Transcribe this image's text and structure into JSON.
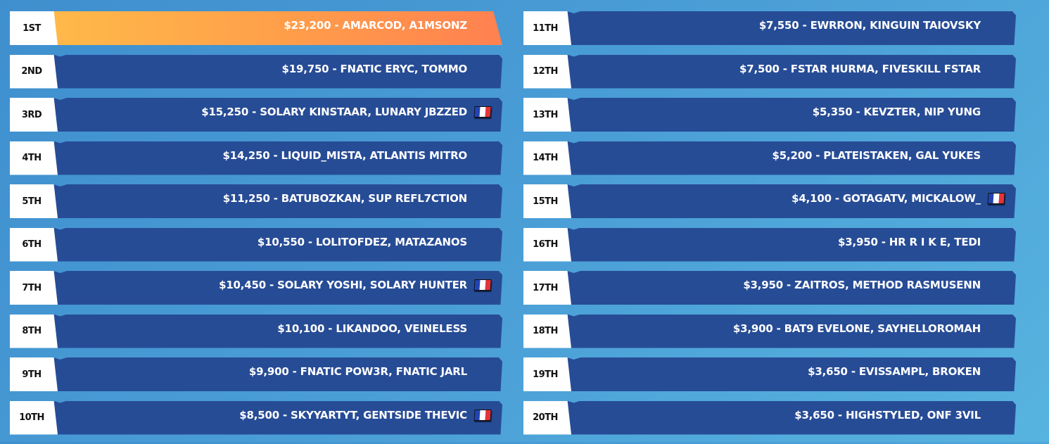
{
  "colors": {
    "bar": "#274c96",
    "gold_start": "#ffb949",
    "gold_end": "#ff8150",
    "rank_bg": "#ffffff"
  },
  "left": [
    {
      "rank": "1ST",
      "text": "$23,200 - AMARCOD, A1MSONZ",
      "flag": false,
      "highlight": true
    },
    {
      "rank": "2ND",
      "text": "$19,750 - FNATIC ERYC, TOMMO",
      "flag": false
    },
    {
      "rank": "3RD",
      "text": "$15,250 - SOLARY KINSTAAR, LUNARY JBZZED",
      "flag": true
    },
    {
      "rank": "4TH",
      "text": "$14,250 - LIQUID_MISTA, ATLANTIS MITRO",
      "flag": false
    },
    {
      "rank": "5TH",
      "text": "$11,250 - BATUBOZKAN, SUP REFL7CTION",
      "flag": false
    },
    {
      "rank": "6TH",
      "text": "$10,550 - LOLITOFDEZ, MATAZANOS",
      "flag": false
    },
    {
      "rank": "7TH",
      "text": "$10,450 - SOLARY YOSHI, SOLARY HUNTER",
      "flag": true
    },
    {
      "rank": "8TH",
      "text": "$10,100 - LIKANDOO, VEINELESS",
      "flag": false
    },
    {
      "rank": "9TH",
      "text": "$9,900 - FNATIC POW3R, FNATIC JARL",
      "flag": false
    },
    {
      "rank": "10TH",
      "text": "$8,500 - SKYYARTYT, GENTSIDE THEVIC",
      "flag": true
    }
  ],
  "right": [
    {
      "rank": "11TH",
      "text": "$7,550 - EWRRON, KINGUIN TAIOVSKY",
      "flag": false
    },
    {
      "rank": "12TH",
      "text": "$7,500 - FSTAR HURMA, FIVESKILL FSTAR",
      "flag": false
    },
    {
      "rank": "13TH",
      "text": "$5,350 - KEVZTER, NIP YUNG",
      "flag": false
    },
    {
      "rank": "14TH",
      "text": "$5,200 - PLATEISTAKEN, GAL YUKES",
      "flag": false
    },
    {
      "rank": "15TH",
      "text": "$4,100 - GOTAGATV, MICKALOW_",
      "flag": true
    },
    {
      "rank": "16TH",
      "text": "$3,950 - HR R I K E, TEDI",
      "flag": false
    },
    {
      "rank": "17TH",
      "text": "$3,950 - ZAITROS, METHOD RASMUSENN",
      "flag": false
    },
    {
      "rank": "18TH",
      "text": "$3,900 - BAT9 EVELONE, SAYHELLOROMAH",
      "flag": false
    },
    {
      "rank": "19TH",
      "text": "$3,650 - EVISSAMPL, BROKEN",
      "flag": false
    },
    {
      "rank": "20TH",
      "text": "$3,650 - HIGHSTYLED, ONF 3VIL",
      "flag": false
    }
  ]
}
